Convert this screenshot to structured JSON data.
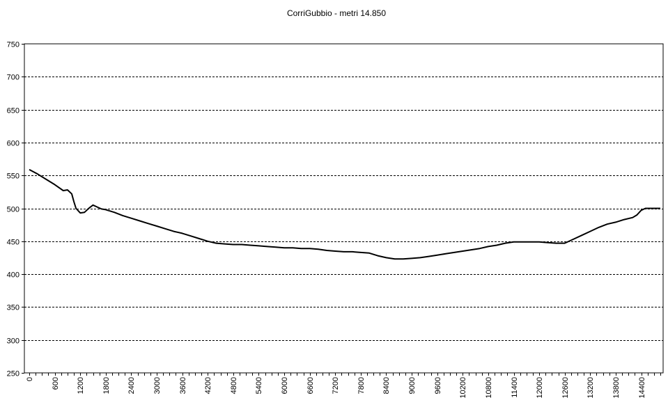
{
  "chart_data": {
    "type": "line",
    "title": "CorriGubbio - metri 14.850",
    "xlabel": "",
    "ylabel": "",
    "xlim": [
      0,
      14850
    ],
    "ylim": [
      250,
      750
    ],
    "x_ticks": [
      0,
      600,
      1200,
      1800,
      2400,
      3000,
      3600,
      4200,
      4800,
      5400,
      6000,
      6600,
      7200,
      7800,
      8400,
      9000,
      9600,
      10200,
      10800,
      11400,
      12000,
      12600,
      13200,
      13800,
      14400
    ],
    "y_ticks": [
      250,
      300,
      350,
      400,
      450,
      500,
      550,
      600,
      650,
      700,
      750
    ],
    "grid": "horizontal dashed",
    "legend": "none",
    "series": [
      {
        "color": "#000000",
        "x": [
          0,
          200,
          400,
          600,
          800,
          900,
          1000,
          1050,
          1100,
          1200,
          1300,
          1400,
          1500,
          1600,
          1700,
          1800,
          2000,
          2200,
          2400,
          2600,
          2800,
          3000,
          3200,
          3400,
          3600,
          3800,
          4000,
          4200,
          4400,
          4600,
          4800,
          5000,
          5200,
          5400,
          5600,
          5800,
          6000,
          6200,
          6400,
          6600,
          6800,
          7000,
          7200,
          7400,
          7600,
          7800,
          8000,
          8200,
          8400,
          8600,
          8800,
          9000,
          9200,
          9400,
          9600,
          9800,
          10000,
          10200,
          10400,
          10600,
          10800,
          11000,
          11200,
          11400,
          11600,
          11800,
          12000,
          12200,
          12400,
          12600,
          12800,
          13000,
          13200,
          13400,
          13600,
          13800,
          14000,
          14200,
          14300,
          14400,
          14500,
          14600,
          14700,
          14850
        ],
        "values": [
          559,
          552,
          544,
          536,
          527,
          528,
          522,
          510,
          500,
          493,
          494,
          500,
          505,
          502,
          499,
          498,
          494,
          489,
          485,
          481,
          477,
          473,
          469,
          465,
          462,
          458,
          454,
          450,
          447,
          446,
          445,
          445,
          444,
          443,
          442,
          441,
          440,
          440,
          439,
          439,
          438,
          436,
          435,
          434,
          434,
          433,
          432,
          428,
          425,
          423,
          423,
          424,
          425,
          427,
          429,
          431,
          433,
          435,
          437,
          439,
          442,
          444,
          447,
          449,
          449,
          449,
          449,
          448,
          447,
          447,
          453,
          459,
          465,
          471,
          476,
          479,
          483,
          486,
          490,
          497,
          500,
          500,
          500,
          500
        ]
      }
    ]
  }
}
